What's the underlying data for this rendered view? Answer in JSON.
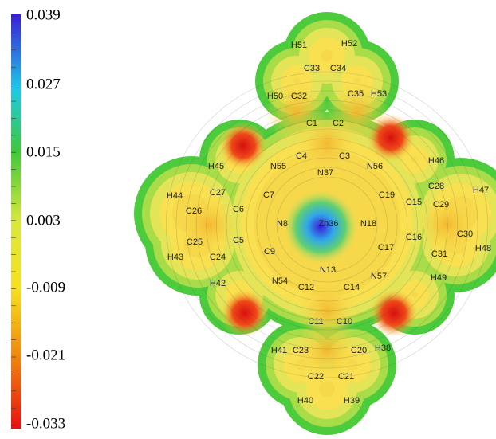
{
  "colorbar": {
    "ticks": [
      "0.039",
      "0.027",
      "0.015",
      "0.003",
      "-0.009",
      "-0.021",
      "-0.033"
    ]
  },
  "atoms": [
    "H51",
    "H52",
    "C33",
    "C34",
    "H50",
    "C32",
    "C35",
    "H53",
    "C1",
    "C2",
    "C4",
    "C3",
    "N55",
    "N37",
    "N56",
    "H46",
    "H45",
    "C27",
    "C28",
    "H47",
    "H44",
    "C7",
    "C19",
    "C15",
    "C29",
    "C26",
    "C6",
    "N8",
    "Zn36",
    "N18",
    "C5",
    "C25",
    "C9",
    "C17",
    "C16",
    "C30",
    "H48",
    "H43",
    "C24",
    "C31",
    "N13",
    "H42",
    "N54",
    "C12",
    "C14",
    "N57",
    "H49",
    "C11",
    "C10",
    "H41",
    "C23",
    "C20",
    "H38",
    "C22",
    "C21",
    "H40",
    "H39"
  ]
}
